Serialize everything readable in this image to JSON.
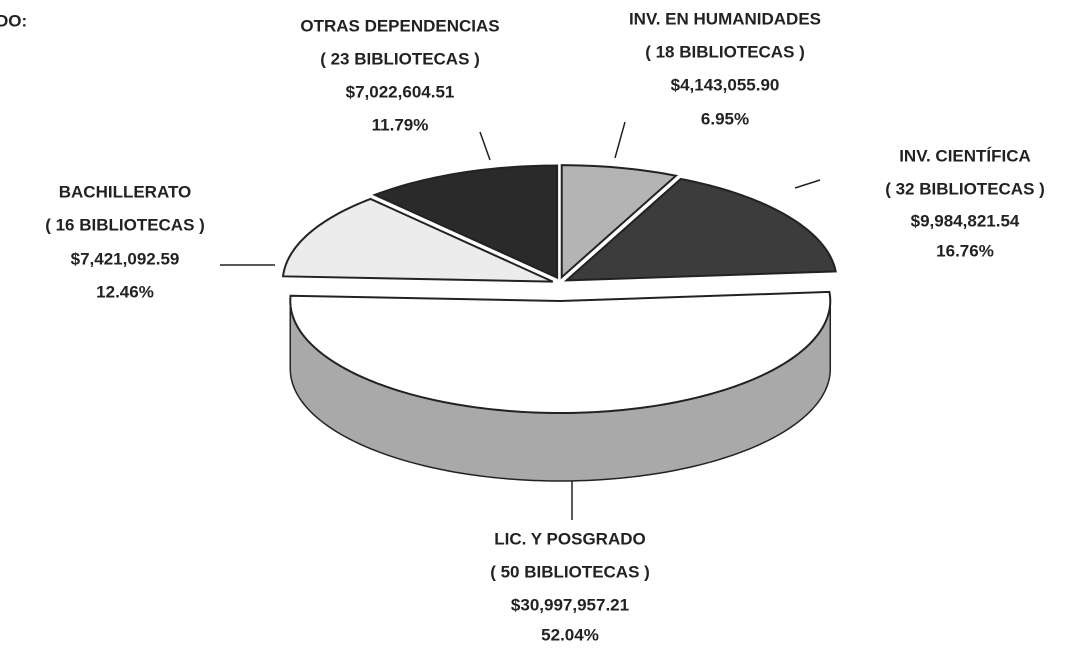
{
  "chart_data": {
    "type": "pie",
    "heading": "DO:",
    "categories": [
      "INV. EN HUMANIDADES",
      "INV. CIENTÍFICA",
      "LIC. Y POSGRADO",
      "BACHILLERATO",
      "OTRAS DEPENDENCIAS"
    ],
    "libraries": [
      "( 18 BIBLIOTECAS )",
      "( 32 BIBLIOTECAS )",
      "( 50 BIBLIOTECAS )",
      "( 16 BIBLIOTECAS )",
      "( 23 BIBLIOTECAS )"
    ],
    "amounts": [
      "$4,143,055.90",
      "$9,984,821.54",
      "$30,997,957.21",
      "$7,421,092.59",
      "$7,022,604.51"
    ],
    "values": [
      6.95,
      16.76,
      52.04,
      12.46,
      11.79
    ],
    "value_labels": [
      "6.95%",
      "16.76%",
      "52.04%",
      "12.46%",
      "11.79%"
    ],
    "colors": [
      "#b4b4b4",
      "#3c3c3c",
      "#ffffff",
      "#ececec",
      "#2a2a2a"
    ],
    "side_colors": [
      "#8a8a8a",
      "#1e1e1e",
      "#a9a9a9",
      "#7a7a7a",
      "#161616"
    ]
  }
}
